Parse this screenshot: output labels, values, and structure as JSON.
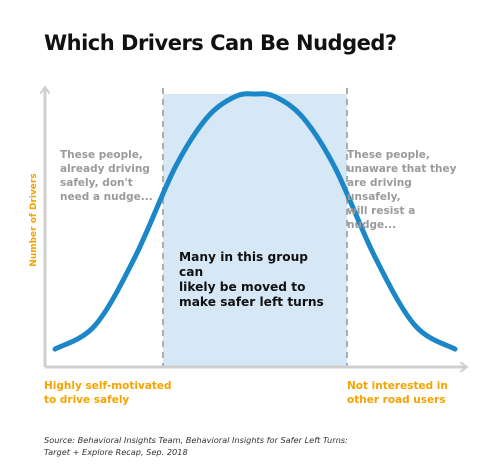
{
  "chart_data": {
    "type": "area",
    "title": "Which Drivers Can Be Nudged?",
    "ylabel": "Number of Drivers",
    "x_axis_labels": {
      "left": "Highly self-motivated\nto drive safely",
      "right": "Not interested in\nother road users"
    },
    "ylim": [
      0,
      1
    ],
    "xlim": [
      0,
      1
    ],
    "grid": false,
    "series": [
      {
        "x": [
          0.0,
          0.1,
          0.2,
          0.3,
          0.38,
          0.45,
          0.5,
          0.55,
          0.62,
          0.7,
          0.8,
          0.9,
          1.0
        ],
        "values": [
          0.03,
          0.12,
          0.38,
          0.72,
          0.91,
          0.99,
          1.0,
          0.99,
          0.91,
          0.72,
          0.38,
          0.12,
          0.03
        ]
      }
    ],
    "highlight_region": {
      "x_start": 0.27,
      "x_end": 0.73
    },
    "annotations": {
      "left": "These people,\nalready driving\nsafely, don't\nneed a nudge...",
      "right": "These people,\nunaware that they\nare driving unsafely,\nwill resist a nudge...",
      "middle": "Many in this group can\nlikely be moved to\nmake safer left turns"
    },
    "source": "Source: Behavioral Insights Team, Behavioral Insights for Safer Left Turns:\nTarget + Explore Recap, Sep. 2018"
  },
  "colors": {
    "curve": "#1b86c8",
    "highlight_fill": "#d6e7f6",
    "divider": "#a9adb0",
    "axis": "#cfcfcf",
    "label_accent": "#f5a300",
    "note_gray": "#9a9a9a"
  }
}
